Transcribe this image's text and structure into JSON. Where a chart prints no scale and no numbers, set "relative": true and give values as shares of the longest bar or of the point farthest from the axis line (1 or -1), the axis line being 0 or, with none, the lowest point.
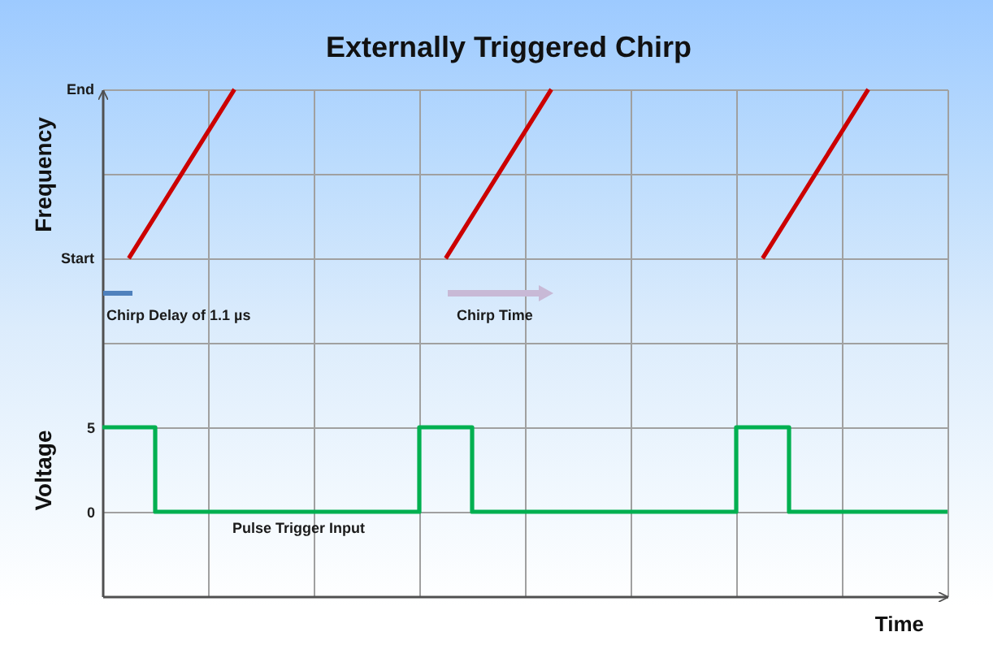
{
  "chart_data": [
    {
      "type": "line",
      "title": "Externally Triggered Chirp",
      "ylabel": "Frequency",
      "relative": true,
      "categories": [
        null,
        null,
        null,
        null,
        null,
        null,
        null,
        null,
        null,
        null,
        null,
        null,
        null,
        null,
        null,
        null,
        null,
        null,
        null,
        null,
        null,
        null,
        null,
        null,
        null,
        null,
        null,
        null,
        null,
        null,
        null,
        null,
        null
      ],
      "grid": true,
      "tick_labels": false,
      "series": [
        {
          "color": "#cc0000",
          "values": [
            null,
            0,
            0.25,
            0.5,
            0.75,
            1,
            null,
            null,
            null,
            null,
            null,
            null,
            null,
            null,
            null,
            null,
            null,
            null,
            null,
            null,
            null,
            null,
            null,
            null,
            null,
            null,
            null,
            null,
            null,
            null,
            null,
            null,
            null
          ]
        },
        {
          "color": "#cc0000",
          "values": [
            null,
            null,
            null,
            null,
            null,
            null,
            null,
            null,
            null,
            null,
            null,
            null,
            null,
            0,
            0.25,
            0.5,
            0.75,
            1,
            null,
            null,
            null,
            null,
            null,
            null,
            null,
            null,
            null,
            null,
            null,
            null,
            null,
            null,
            null
          ]
        },
        {
          "color": "#cc0000",
          "values": [
            null,
            null,
            null,
            null,
            null,
            null,
            null,
            null,
            null,
            null,
            null,
            null,
            null,
            null,
            null,
            null,
            null,
            null,
            null,
            null,
            null,
            null,
            null,
            null,
            null,
            0,
            0.25,
            0.5,
            0.75,
            1,
            null,
            null,
            null
          ]
        }
      ],
      "annotations": [
        "End",
        "Start",
        "Chirp Delay of 1.1 µs",
        "Chirp Time"
      ]
    },
    {
      "type": "step",
      "xlabel": "Time",
      "ylabel": "Voltage",
      "categories": [
        null,
        null,
        null,
        null,
        null,
        null,
        null,
        null,
        null,
        null,
        null,
        null,
        null,
        null,
        null,
        null,
        null,
        null,
        null,
        null,
        null,
        null,
        null,
        null,
        null,
        null,
        null,
        null,
        null,
        null,
        null,
        null,
        null
      ],
      "ylim": [
        -5,
        10
      ],
      "yticks": [
        5,
        0
      ],
      "grid": true,
      "tick_labels": "y",
      "series": [
        {
          "color": "#00b050",
          "values": [
            5,
            5,
            0,
            0,
            0,
            0,
            0,
            0,
            0,
            0,
            0,
            0,
            5,
            5,
            0,
            0,
            0,
            0,
            0,
            0,
            0,
            0,
            0,
            0,
            5,
            5,
            0,
            0,
            0,
            0,
            0,
            0,
            0
          ]
        }
      ],
      "annotations": [
        "Pulse Trigger Input"
      ]
    }
  ]
}
